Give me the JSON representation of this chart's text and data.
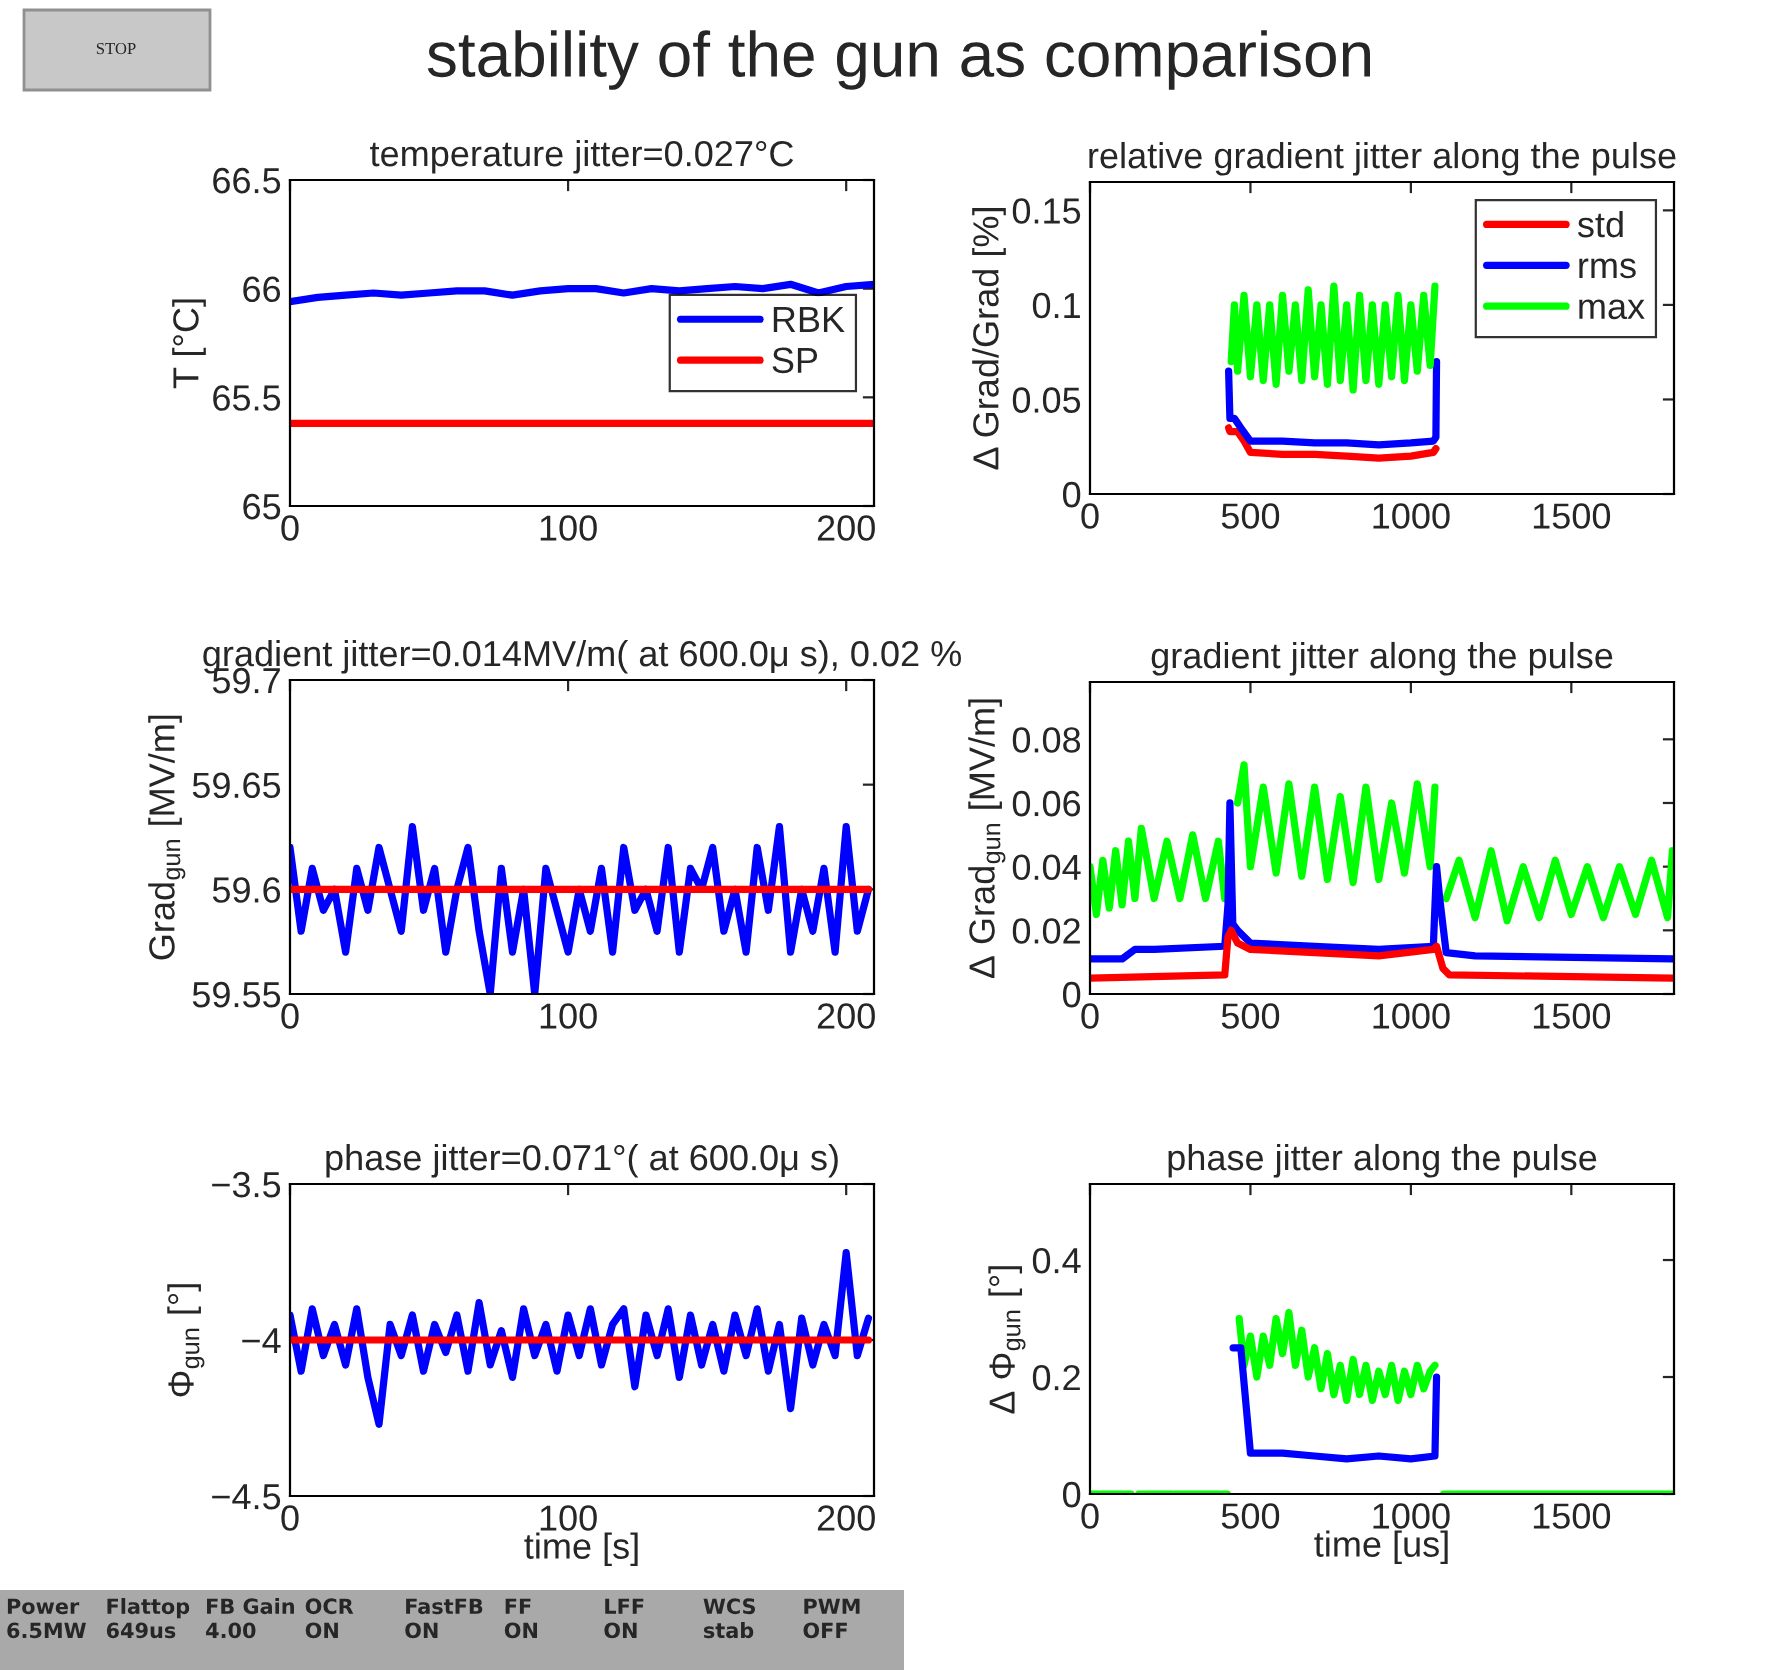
{
  "chart_data": [
    {
      "type": "other",
      "title": "stability of the gun as comparison",
      "annotations": [
        "STOP"
      ]
    },
    {
      "type": "line",
      "title": "temperature jitter=0.027°C",
      "ylabel": "T [°C]",
      "xlim": [
        0,
        210
      ],
      "xticks": [
        0,
        100,
        200
      ],
      "ylim": [
        65,
        66.5
      ],
      "yticks": [
        65,
        65.5,
        66,
        66.5
      ],
      "legend": "right",
      "series": [
        {
          "name": "RBK",
          "color": "#0000ff",
          "x": [
            0,
            10,
            20,
            30,
            40,
            50,
            60,
            70,
            80,
            90,
            100,
            110,
            120,
            130,
            140,
            150,
            160,
            170,
            180,
            190,
            200,
            210
          ],
          "values": [
            65.94,
            65.96,
            65.97,
            65.98,
            65.97,
            65.98,
            65.99,
            65.99,
            65.97,
            65.99,
            66.0,
            66.0,
            65.98,
            66.0,
            65.99,
            66.0,
            66.01,
            66.0,
            66.02,
            65.98,
            66.01,
            66.02
          ]
        },
        {
          "name": "SP",
          "color": "#ff0000",
          "x": [
            0,
            210
          ],
          "values": [
            65.38,
            65.38
          ]
        }
      ]
    },
    {
      "type": "line",
      "title": "relative gradient jitter along the pulse",
      "ylabel": "Δ Grad/Grad [%]",
      "xlim": [
        0,
        1820
      ],
      "xticks": [
        0,
        500,
        1000,
        1500
      ],
      "ylim": [
        0,
        0.165
      ],
      "yticks": [
        0,
        0.05,
        0.1,
        0.15
      ],
      "legend": "top right",
      "series": [
        {
          "name": "std",
          "color": "#ff0000",
          "x": [
            432,
            436,
            460,
            480,
            500,
            600,
            700,
            800,
            900,
            1000,
            1070,
            1078
          ],
          "values": [
            0.035,
            0.033,
            0.033,
            0.028,
            0.022,
            0.021,
            0.021,
            0.02,
            0.019,
            0.02,
            0.022,
            0.024
          ]
        },
        {
          "name": "rms",
          "color": "#0000ff",
          "x": [
            432,
            436,
            450,
            470,
            500,
            600,
            700,
            800,
            900,
            1000,
            1070,
            1078,
            1080
          ],
          "values": [
            0.065,
            0.04,
            0.04,
            0.035,
            0.028,
            0.028,
            0.027,
            0.027,
            0.026,
            0.027,
            0.028,
            0.03,
            0.07
          ]
        },
        {
          "name": "max",
          "color": "#00ff00",
          "x": [
            440,
            450,
            460,
            480,
            500,
            520,
            540,
            560,
            580,
            600,
            620,
            640,
            660,
            680,
            700,
            720,
            740,
            760,
            780,
            800,
            820,
            840,
            860,
            880,
            900,
            920,
            940,
            960,
            980,
            1000,
            1020,
            1040,
            1060,
            1075
          ],
          "values": [
            0.07,
            0.1,
            0.065,
            0.105,
            0.062,
            0.1,
            0.06,
            0.1,
            0.058,
            0.105,
            0.065,
            0.1,
            0.06,
            0.108,
            0.062,
            0.1,
            0.058,
            0.11,
            0.06,
            0.1,
            0.055,
            0.105,
            0.06,
            0.1,
            0.058,
            0.1,
            0.062,
            0.105,
            0.06,
            0.1,
            0.065,
            0.105,
            0.068,
            0.11
          ]
        }
      ]
    },
    {
      "type": "line",
      "title": "gradient jitter=0.014MV/m( at 600.0μ s), 0.02 %",
      "ylabel": "Grad$_{gun}$ [MV/m]",
      "xlim": [
        0,
        210
      ],
      "xticks": [
        0,
        100,
        200
      ],
      "ylim": [
        59.55,
        59.7
      ],
      "yticks": [
        59.55,
        59.6,
        59.65,
        59.7
      ],
      "series": [
        {
          "color": "#0000ff",
          "x": [
            0,
            4,
            8,
            12,
            16,
            20,
            24,
            28,
            32,
            36,
            40,
            44,
            48,
            52,
            56,
            60,
            64,
            68,
            72,
            76,
            80,
            84,
            88,
            92,
            96,
            100,
            104,
            108,
            112,
            116,
            120,
            124,
            128,
            132,
            136,
            140,
            144,
            148,
            152,
            156,
            160,
            164,
            168,
            172,
            176,
            180,
            184,
            188,
            192,
            196,
            200,
            204,
            208
          ],
          "values": [
            59.62,
            59.58,
            59.61,
            59.59,
            59.6,
            59.57,
            59.61,
            59.59,
            59.62,
            59.6,
            59.58,
            59.63,
            59.59,
            59.61,
            59.57,
            59.6,
            59.62,
            59.58,
            59.55,
            59.61,
            59.57,
            59.6,
            59.55,
            59.61,
            59.59,
            59.57,
            59.6,
            59.58,
            59.61,
            59.57,
            59.62,
            59.59,
            59.6,
            59.58,
            59.62,
            59.57,
            59.61,
            59.6,
            59.62,
            59.58,
            59.6,
            59.57,
            59.62,
            59.59,
            59.63,
            59.57,
            59.6,
            59.58,
            59.61,
            59.57,
            59.63,
            59.58,
            59.6
          ]
        },
        {
          "color": "#ff0000",
          "x": [
            0,
            208
          ],
          "values": [
            59.6,
            59.6
          ]
        }
      ]
    },
    {
      "type": "line",
      "title": "gradient jitter along the pulse",
      "ylabel": "Δ Grad$_{gun}$ [MV/m]",
      "xlim": [
        0,
        1820
      ],
      "xticks": [
        0,
        500,
        1000,
        1500
      ],
      "ylim": [
        0,
        0.098
      ],
      "yticks": [
        0,
        0.02,
        0.04,
        0.06,
        0.08
      ],
      "series": [
        {
          "color": "#00ff00",
          "x": [
            0,
            20,
            40,
            60,
            80,
            100,
            120,
            140,
            160,
            200,
            240,
            280,
            320,
            360,
            400,
            420,
            430,
            440,
            460,
            480,
            500,
            540,
            580,
            620,
            660,
            700,
            740,
            780,
            820,
            860,
            900,
            940,
            980,
            1020,
            1060,
            1075,
            1085,
            1100,
            1110,
            1150,
            1200,
            1250,
            1300,
            1350,
            1400,
            1450,
            1500,
            1550,
            1600,
            1650,
            1700,
            1750,
            1800,
            1815
          ],
          "values": [
            0.04,
            0.025,
            0.042,
            0.027,
            0.045,
            0.028,
            0.048,
            0.03,
            0.052,
            0.03,
            0.048,
            0.03,
            0.05,
            0.03,
            0.048,
            0.03,
            null,
            null,
            0.06,
            0.072,
            0.04,
            0.065,
            0.038,
            0.066,
            0.037,
            0.065,
            0.036,
            0.062,
            0.035,
            0.065,
            0.036,
            0.06,
            0.038,
            0.066,
            0.04,
            0.065,
            null,
            null,
            0.03,
            0.042,
            0.024,
            0.045,
            0.023,
            0.04,
            0.024,
            0.042,
            0.025,
            0.04,
            0.024,
            0.04,
            0.025,
            0.042,
            0.024,
            0.045
          ]
        },
        {
          "color": "#0000ff",
          "x": [
            0,
            100,
            140,
            200,
            420,
            430,
            436,
            445,
            460,
            500,
            700,
            900,
            1070,
            1080,
            1090,
            1110,
            1200,
            1815
          ],
          "values": [
            0.011,
            0.011,
            0.014,
            0.014,
            0.015,
            0.028,
            0.06,
            0.022,
            0.02,
            0.016,
            0.015,
            0.014,
            0.015,
            0.04,
            0.03,
            0.013,
            0.012,
            0.011
          ]
        },
        {
          "color": "#ff0000",
          "x": [
            0,
            420,
            430,
            440,
            460,
            500,
            700,
            900,
            1070,
            1080,
            1100,
            1120,
            1815
          ],
          "values": [
            0.005,
            0.006,
            0.018,
            0.02,
            0.016,
            0.014,
            0.013,
            0.012,
            0.014,
            0.015,
            0.008,
            0.006,
            0.005
          ]
        }
      ]
    },
    {
      "type": "line",
      "title": "phase jitter=0.071°( at 600.0μ s)",
      "ylabel": "Φ$_{gun}$ [°]",
      "xlabel": "time [s]",
      "xlim": [
        0,
        210
      ],
      "xticks": [
        0,
        100,
        200
      ],
      "ylim": [
        -4.5,
        -3.5
      ],
      "yticks": [
        {
          "value": -4.5,
          "label": "−4.5"
        },
        {
          "value": -4,
          "label": "−4"
        },
        {
          "value": -3.5,
          "label": "−3.5"
        }
      ],
      "series": [
        {
          "color": "#0000ff",
          "x": [
            0,
            4,
            8,
            12,
            16,
            20,
            24,
            28,
            32,
            36,
            40,
            44,
            48,
            52,
            56,
            60,
            64,
            68,
            72,
            76,
            80,
            84,
            88,
            92,
            96,
            100,
            104,
            108,
            112,
            116,
            120,
            124,
            128,
            132,
            136,
            140,
            144,
            148,
            152,
            156,
            160,
            164,
            168,
            172,
            176,
            180,
            184,
            188,
            192,
            196,
            200,
            204,
            208
          ],
          "values": [
            -3.92,
            -4.1,
            -3.9,
            -4.05,
            -3.95,
            -4.08,
            -3.9,
            -4.12,
            -4.27,
            -3.95,
            -4.05,
            -3.92,
            -4.1,
            -3.95,
            -4.04,
            -3.92,
            -4.1,
            -3.88,
            -4.08,
            -3.97,
            -4.12,
            -3.9,
            -4.05,
            -3.95,
            -4.1,
            -3.92,
            -4.05,
            -3.9,
            -4.08,
            -3.95,
            -3.9,
            -4.15,
            -3.92,
            -4.05,
            -3.9,
            -4.12,
            -3.92,
            -4.08,
            -3.95,
            -4.1,
            -3.92,
            -4.05,
            -3.9,
            -4.1,
            -3.95,
            -4.22,
            -3.93,
            -4.08,
            -3.95,
            -4.05,
            -3.72,
            -4.05,
            -3.93
          ]
        },
        {
          "color": "#ff0000",
          "x": [
            0,
            208
          ],
          "values": [
            -4,
            -4
          ]
        }
      ]
    },
    {
      "type": "line",
      "title": "phase jitter along the pulse",
      "ylabel": "Δ Φ$_{gun}$ [°]",
      "xlabel": "time [us]",
      "xlim": [
        0,
        1820
      ],
      "xticks": [
        0,
        500,
        1000,
        1500
      ],
      "ylim": [
        0,
        0.53
      ],
      "yticks": [
        0,
        0.2,
        0.4
      ],
      "series": [
        {
          "color": "#00ff00",
          "x": [
            0,
            128,
            130,
            150,
            152,
            255,
            258,
            262,
            265,
            428,
            432,
            452,
            465,
            480,
            500,
            520,
            540,
            560,
            580,
            600,
            620,
            640,
            660,
            680,
            700,
            720,
            740,
            760,
            780,
            800,
            820,
            840,
            860,
            880,
            900,
            920,
            940,
            960,
            980,
            1000,
            1020,
            1040,
            1060,
            1075,
            1082,
            1098,
            1102,
            1820
          ],
          "values": [
            0,
            0,
            null,
            null,
            0,
            0,
            null,
            null,
            0,
            0,
            null,
            null,
            0.3,
            0.22,
            0.27,
            0.2,
            0.27,
            0.22,
            0.3,
            0.24,
            0.31,
            0.22,
            0.28,
            0.2,
            0.25,
            0.18,
            0.24,
            0.17,
            0.22,
            0.16,
            0.23,
            0.17,
            0.22,
            0.16,
            0.21,
            0.17,
            0.22,
            0.16,
            0.21,
            0.17,
            0.22,
            0.18,
            0.21,
            0.22,
            null,
            null,
            0,
            0
          ]
        },
        {
          "color": "#0000ff",
          "x": [
            446,
            470,
            500,
            600,
            700,
            800,
            900,
            1000,
            1075,
            1080
          ],
          "values": [
            0.25,
            0.25,
            0.07,
            0.07,
            0.065,
            0.06,
            0.065,
            0.06,
            0.065,
            0.2
          ]
        }
      ]
    },
    {
      "type": "other",
      "annotations": [
        "Power\n6.5MW",
        "Flattop\n649us",
        "FB Gain\n4.00",
        "OCR\nON",
        "FastFB\nON",
        "FF\nON",
        "LFF\nON",
        "WCS\nstab",
        "PWM\nOFF"
      ]
    }
  ]
}
